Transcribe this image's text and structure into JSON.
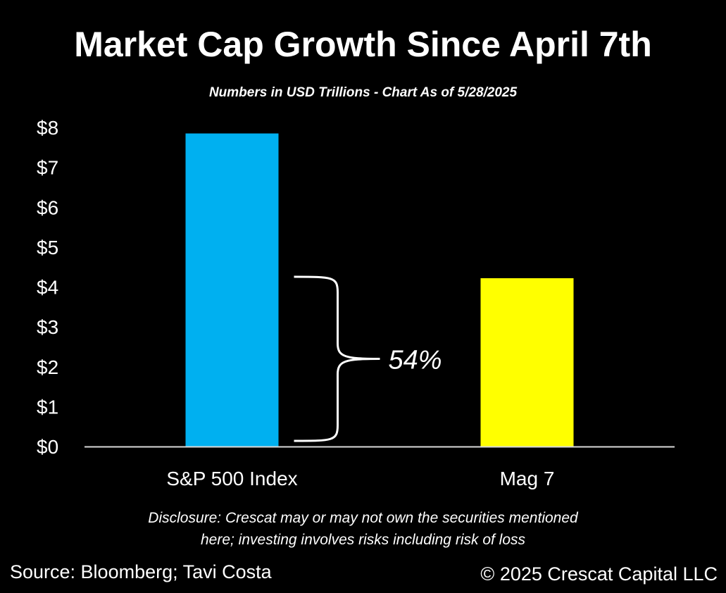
{
  "chart_data": {
    "type": "bar",
    "title": "Market Cap Growth Since April 7th",
    "subtitle": "Numbers in USD Trillions  - Chart As of 5/28/2025",
    "categories": [
      "S&P 500 Index",
      "Mag 7"
    ],
    "values": [
      7.85,
      4.22
    ],
    "colors": [
      "#00B0F0",
      "#FFFF00"
    ],
    "ylim": [
      0,
      8
    ],
    "yticks": [
      0,
      1,
      2,
      3,
      4,
      5,
      6,
      7,
      8
    ],
    "ytick_labels": [
      "$0",
      "$1",
      "$2",
      "$3",
      "$4",
      "$5",
      "$6",
      "$7",
      "$8"
    ],
    "grid": false,
    "annotation": {
      "text": "54%"
    }
  },
  "footer": {
    "disclosure_line1": "Disclosure: Crescat may or may not own the securities mentioned",
    "disclosure_line2": "here; investing involves risks including risk of loss",
    "source": "Source: Bloomberg; Tavi Costa",
    "copyright": "© 2025 Crescat Capital LLC"
  }
}
